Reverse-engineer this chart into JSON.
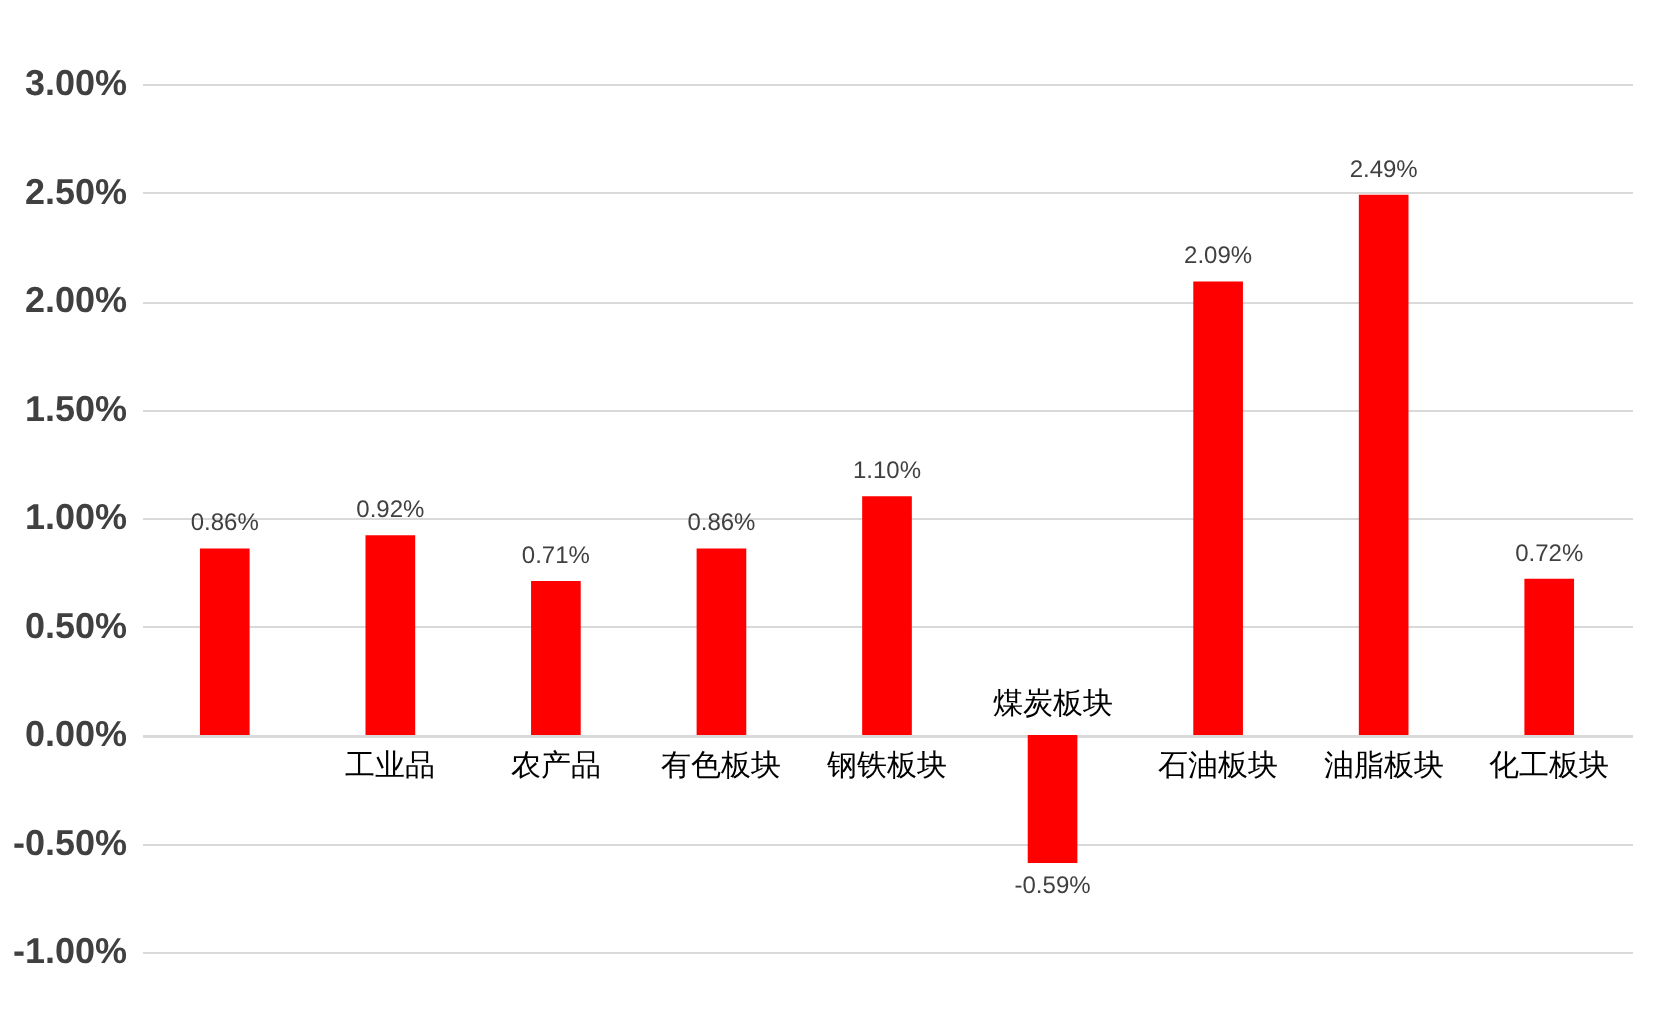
{
  "chart_data": {
    "type": "bar",
    "categories": [
      null,
      "工业品",
      "农产品",
      "有色板块",
      "钢铁板块",
      "煤炭板块",
      "石油板块",
      "油脂板块",
      "化工板块"
    ],
    "values": [
      0.86,
      0.92,
      0.71,
      0.86,
      1.1,
      -0.59,
      2.09,
      2.49,
      0.72
    ],
    "value_labels": [
      "0.86%",
      "0.92%",
      "0.71%",
      "0.86%",
      "1.10%",
      "-0.59%",
      "2.09%",
      "2.49%",
      "0.72%"
    ],
    "color": "#ff0000",
    "ylim": [
      -1,
      3
    ],
    "yticks": [
      {
        "value": -1,
        "label": "-1.00%"
      },
      {
        "value": -0.5,
        "label": "-0.50%"
      },
      {
        "value": 0,
        "label": "0.00%"
      },
      {
        "value": 0.5,
        "label": "0.50%"
      },
      {
        "value": 1,
        "label": "1.00%"
      },
      {
        "value": 1.5,
        "label": "1.50%"
      },
      {
        "value": 2,
        "label": "2.00%"
      },
      {
        "value": 2.5,
        "label": "2.50%"
      },
      {
        "value": 3,
        "label": "3.00%"
      }
    ],
    "grid": "y"
  }
}
